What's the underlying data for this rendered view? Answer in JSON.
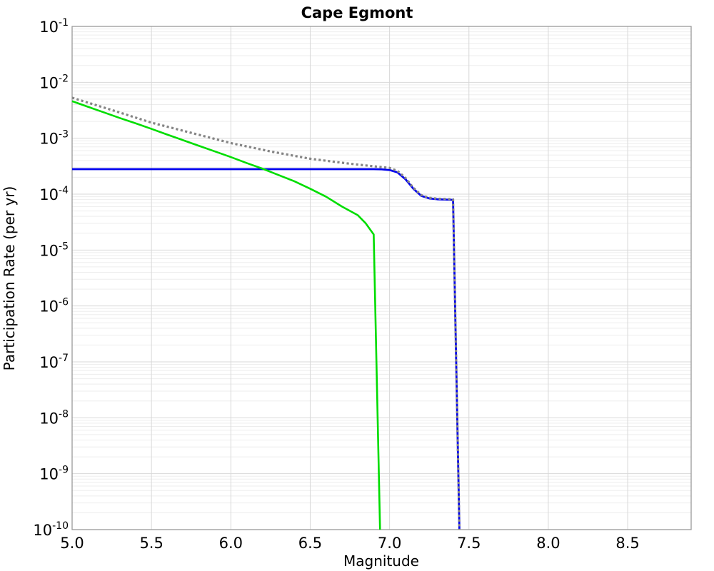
{
  "chart_data": {
    "type": "line",
    "title": "Cape Egmont",
    "xlabel": "Magnitude",
    "ylabel": "Participation Rate (per yr)",
    "xlim": [
      5.0,
      8.9
    ],
    "ylim": [
      1e-10,
      0.1
    ],
    "y_scale": "log",
    "grid": true,
    "legend": "none",
    "x_ticks": [
      {
        "v": 5.0,
        "label": "5.0"
      },
      {
        "v": 5.5,
        "label": "5.5"
      },
      {
        "v": 6.0,
        "label": "6.0"
      },
      {
        "v": 6.5,
        "label": "6.5"
      },
      {
        "v": 7.0,
        "label": "7.0"
      },
      {
        "v": 7.5,
        "label": "7.5"
      },
      {
        "v": 8.0,
        "label": "8.0"
      },
      {
        "v": 8.5,
        "label": "8.5"
      }
    ],
    "y_tick_base": "10",
    "y_tick_exponents": [
      -1,
      -2,
      -3,
      -4,
      -5,
      -6,
      -7,
      -8,
      -9,
      -10
    ],
    "colors": {
      "minor_grid": "#ededed",
      "major_grid": "#d8d8d8",
      "frame": "#999999"
    },
    "series": [
      {
        "name": "blue-solid-line",
        "color": "#0000ee",
        "style": "solid",
        "width": 2.8,
        "points": [
          [
            5.0,
            0.00028
          ],
          [
            6.9,
            0.00028
          ],
          [
            6.95,
            0.000278
          ],
          [
            7.0,
            0.00027
          ],
          [
            7.05,
            0.000245
          ],
          [
            7.1,
            0.000185
          ],
          [
            7.15,
            0.000125
          ],
          [
            7.2,
            9.3e-05
          ],
          [
            7.25,
            8.4e-05
          ],
          [
            7.3,
            8.1e-05
          ],
          [
            7.35,
            8e-05
          ],
          [
            7.4,
            7.9e-05
          ],
          [
            7.44,
            1e-10
          ]
        ]
      },
      {
        "name": "green-solid-line",
        "color": "#00dd00",
        "style": "solid",
        "width": 2.6,
        "points": [
          [
            5.0,
            0.0046
          ],
          [
            5.1,
            0.00365
          ],
          [
            5.2,
            0.0029
          ],
          [
            5.3,
            0.0023
          ],
          [
            5.4,
            0.00185
          ],
          [
            5.5,
            0.00147
          ],
          [
            5.6,
            0.00116
          ],
          [
            5.7,
            0.00092
          ],
          [
            5.8,
            0.00073
          ],
          [
            5.9,
            0.00058
          ],
          [
            6.0,
            0.00046
          ],
          [
            6.1,
            0.00036
          ],
          [
            6.2,
            0.000285
          ],
          [
            6.3,
            0.00022
          ],
          [
            6.4,
            0.00017
          ],
          [
            6.5,
            0.000125
          ],
          [
            6.6,
            9e-05
          ],
          [
            6.7,
            6e-05
          ],
          [
            6.8,
            4.2e-05
          ],
          [
            6.85,
            3e-05
          ],
          [
            6.9,
            1.9e-05
          ],
          [
            6.94,
            1e-10
          ]
        ]
      },
      {
        "name": "gray-dotted-line",
        "color": "#858585",
        "style": "dotted",
        "width": 3.2,
        "points": [
          [
            5.0,
            0.0053
          ],
          [
            5.25,
            0.0032
          ],
          [
            5.5,
            0.0019
          ],
          [
            5.75,
            0.00125
          ],
          [
            6.0,
            0.00082
          ],
          [
            6.25,
            0.00058
          ],
          [
            6.5,
            0.00043
          ],
          [
            6.75,
            0.00035
          ],
          [
            6.9,
            0.000315
          ],
          [
            7.0,
            0.000295
          ],
          [
            7.05,
            0.00026
          ],
          [
            7.1,
            0.000195
          ],
          [
            7.15,
            0.00013
          ],
          [
            7.2,
            9.6e-05
          ],
          [
            7.25,
            8.6e-05
          ],
          [
            7.3,
            8.3e-05
          ],
          [
            7.35,
            8.2e-05
          ],
          [
            7.4,
            8.1e-05
          ],
          [
            7.44,
            1e-10
          ]
        ]
      }
    ]
  }
}
